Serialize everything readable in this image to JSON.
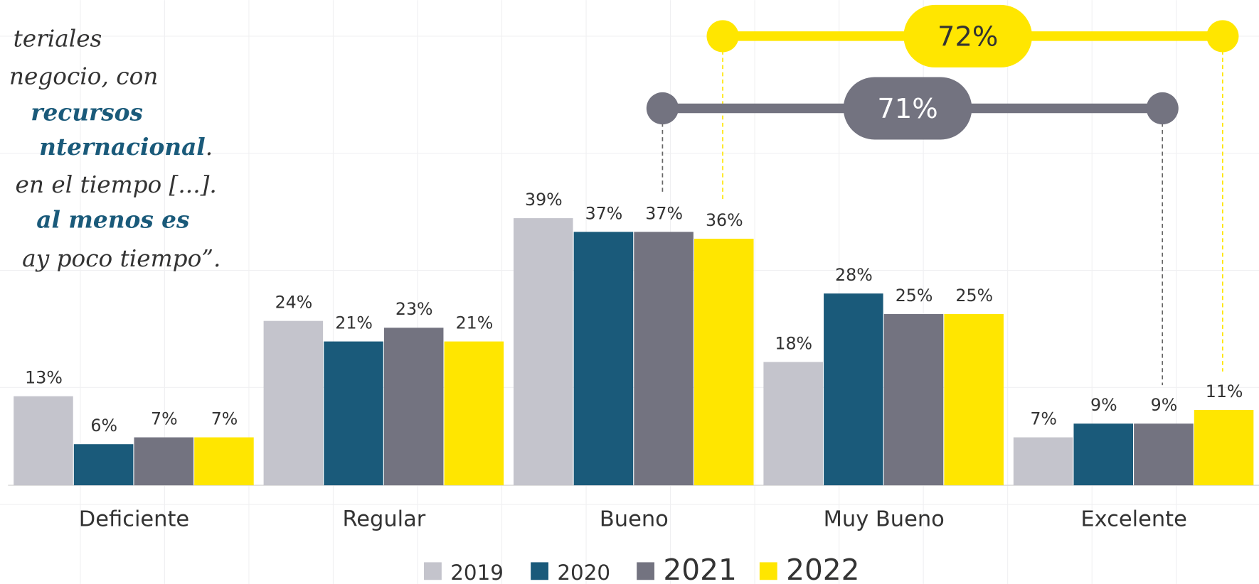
{
  "chart_data": {
    "type": "bar",
    "categories": [
      "Deficiente",
      "Regular",
      "Bueno",
      "Muy Bueno",
      "Excelente"
    ],
    "series": [
      {
        "name": "2019",
        "color": "#c4c4cc",
        "values": [
          13,
          24,
          39,
          18,
          7
        ],
        "value_labels": [
          "13%",
          "24%",
          "39%",
          "18%",
          "7%"
        ]
      },
      {
        "name": "2020",
        "color": "#1a5a7a",
        "values": [
          6,
          21,
          37,
          28,
          9
        ],
        "value_labels": [
          "6%",
          "21%",
          "37%",
          "28%",
          "9%"
        ]
      },
      {
        "name": "2021",
        "color": "#737380",
        "values": [
          7,
          23,
          37,
          25,
          9
        ],
        "value_labels": [
          "7%",
          "23%",
          "37%",
          "25%",
          "9%"
        ]
      },
      {
        "name": "2022",
        "color": "#ffe600",
        "values": [
          7,
          21,
          36,
          25,
          11
        ],
        "value_labels": [
          "7%",
          "21%",
          "36%",
          "25%",
          "11%"
        ]
      }
    ],
    "annotations": [
      {
        "label": "72%",
        "color": "#ffe600"
      },
      {
        "label": "71%",
        "color": "#737380"
      }
    ]
  },
  "quote_lines": [
    [
      {
        "text": "teriales",
        "bold": false
      }
    ],
    [
      {
        "text": "negocio, con",
        "bold": false
      }
    ],
    [
      {
        "text": "recursos",
        "bold": true
      }
    ],
    [
      {
        "text": "nternacional",
        "bold": true
      },
      {
        "text": ".",
        "bold": false
      }
    ],
    [
      {
        "text": "en el tiempo [...].",
        "bold": false
      }
    ],
    [
      {
        "text": "al menos es",
        "bold": true
      }
    ],
    [
      {
        "text": "ay poco tiempo”.",
        "bold": false
      }
    ]
  ]
}
